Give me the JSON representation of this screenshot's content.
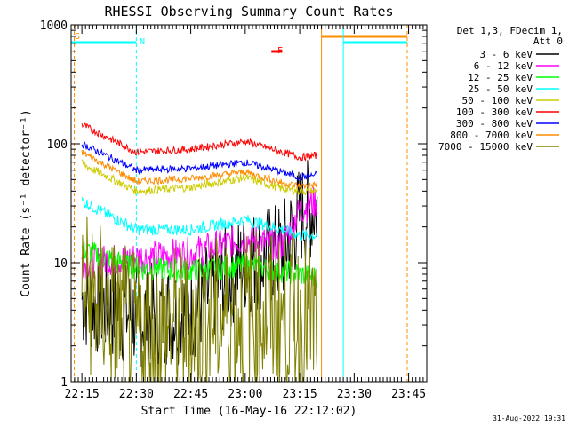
{
  "chart_data": {
    "type": "line",
    "title": "RHESSI Observing Summary Count Rates",
    "xlabel": "Start Time (16-May-16 22:12:02)",
    "ylabel": "Count Rate (s⁻¹ detector⁻¹)",
    "y_scale": "log",
    "ylim": [
      1,
      1000
    ],
    "yticks": [
      1,
      10,
      100,
      1000
    ],
    "ytick_labels": [
      "1",
      "10",
      "100",
      "1000"
    ],
    "xlim": [
      "22:12:02",
      "23:50:00"
    ],
    "xtick_labels": [
      "22:15",
      "22:30",
      "22:45",
      "23:00",
      "23:15",
      "23:30",
      "23:45"
    ],
    "legend_title": "Det 1,3, FDecim 1, Att 0",
    "legend_title_lines": [
      "Det 1,3, FDecim 1,",
      "Att 0"
    ],
    "legend_position": "right",
    "series": [
      {
        "name": "3 - 6 keV",
        "color": "#000000",
        "values": [
          [
            22.25,
            5
          ],
          [
            22.5,
            3.5
          ],
          [
            22.75,
            4
          ],
          [
            23.0,
            10
          ],
          [
            23.17,
            12
          ],
          [
            23.25,
            25
          ],
          [
            23.33,
            30
          ]
        ]
      },
      {
        "name": "6 - 12 keV",
        "color": "#ff00ff",
        "values": [
          [
            22.25,
            10
          ],
          [
            22.5,
            11
          ],
          [
            22.75,
            12
          ],
          [
            23.0,
            16
          ],
          [
            23.17,
            14
          ],
          [
            23.25,
            28
          ],
          [
            23.33,
            33
          ]
        ]
      },
      {
        "name": "12 - 25 keV",
        "color": "#00ff00",
        "values": [
          [
            22.25,
            13
          ],
          [
            22.5,
            9
          ],
          [
            22.75,
            8.5
          ],
          [
            23.0,
            9.5
          ],
          [
            23.17,
            8.5
          ],
          [
            23.25,
            8
          ],
          [
            23.33,
            7.5
          ]
        ]
      },
      {
        "name": "25 - 50 keV",
        "color": "#00ffff",
        "values": [
          [
            22.25,
            33
          ],
          [
            22.5,
            19
          ],
          [
            22.75,
            19
          ],
          [
            23.0,
            23
          ],
          [
            23.17,
            19
          ],
          [
            23.25,
            17
          ],
          [
            23.33,
            17
          ]
        ]
      },
      {
        "name": "50 - 100 keV",
        "color": "#cccc00",
        "values": [
          [
            22.25,
            68
          ],
          [
            22.5,
            40
          ],
          [
            22.75,
            43
          ],
          [
            23.0,
            52
          ],
          [
            23.17,
            42
          ],
          [
            23.25,
            40
          ],
          [
            23.33,
            40
          ]
        ]
      },
      {
        "name": "100 - 300 keV",
        "color": "#ff0000",
        "values": [
          [
            22.25,
            145
          ],
          [
            22.5,
            85
          ],
          [
            22.75,
            90
          ],
          [
            23.0,
            105
          ],
          [
            23.17,
            85
          ],
          [
            23.25,
            77
          ],
          [
            23.33,
            80
          ]
        ]
      },
      {
        "name": "300 - 800 keV",
        "color": "#0000ff",
        "values": [
          [
            22.25,
            100
          ],
          [
            22.5,
            60
          ],
          [
            22.75,
            62
          ],
          [
            23.0,
            70
          ],
          [
            23.17,
            58
          ],
          [
            23.25,
            52
          ],
          [
            23.33,
            55
          ]
        ]
      },
      {
        "name": "800 - 7000 keV",
        "color": "#ff8c00",
        "values": [
          [
            22.25,
            85
          ],
          [
            22.5,
            48
          ],
          [
            22.75,
            51
          ],
          [
            23.0,
            58
          ],
          [
            23.17,
            47
          ],
          [
            23.25,
            44
          ],
          [
            23.33,
            45
          ]
        ]
      },
      {
        "name": "7000 - 15000 keV",
        "color": "#808000",
        "values": [
          [
            22.25,
            6
          ],
          [
            22.5,
            2.5
          ],
          [
            22.75,
            3
          ],
          [
            23.0,
            4
          ],
          [
            23.17,
            3.5
          ],
          [
            23.25,
            3.5
          ],
          [
            23.33,
            3
          ]
        ]
      }
    ],
    "annotations": [
      {
        "text": "S",
        "color": "#ff8c00"
      },
      {
        "text": "N",
        "color": "#00ffff"
      },
      {
        "text": "F",
        "color": "#ff0000"
      }
    ],
    "footer": "31-Aug-2022 19:31"
  }
}
